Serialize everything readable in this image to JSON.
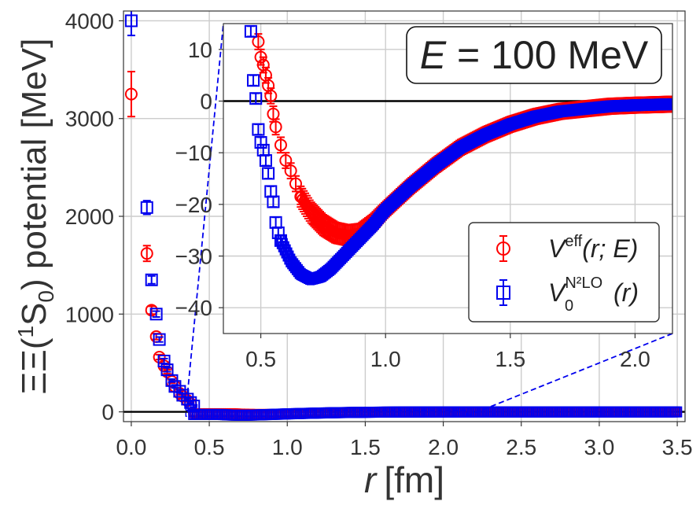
{
  "chart_data": {
    "type": "scatter",
    "main": {
      "xlabel_var": "r",
      "xlabel_unit": "[fm]",
      "ylabel_pre": "ΞΞ(",
      "ylabel_sup": "1",
      "ylabel_s": "S",
      "ylabel_sub": "0",
      "ylabel_post": ") potential [MeV]",
      "xlim": [
        -0.05,
        3.55
      ],
      "ylim": [
        -100,
        4100
      ],
      "xticks": [
        0.0,
        0.5,
        1.0,
        1.5,
        2.0,
        2.5,
        3.0,
        3.5
      ],
      "xtick_labels": [
        "0.0",
        "0.5",
        "1.0",
        "1.5",
        "2.0",
        "2.5",
        "3.0",
        "3.5"
      ],
      "yticks": [
        0,
        1000,
        2000,
        3000,
        4000
      ],
      "ytick_labels": [
        "0",
        "1000",
        "2000",
        "3000",
        "4000"
      ],
      "grid": true
    },
    "inset": {
      "xlim": [
        0.35,
        2.15
      ],
      "ylim": [
        -45,
        15
      ],
      "xticks": [
        0.5,
        1.0,
        1.5,
        2.0
      ],
      "xtick_labels": [
        "0.5",
        "1.0",
        "1.5",
        "2.0"
      ],
      "yticks": [
        -40,
        -30,
        -20,
        -10,
        0,
        10
      ],
      "ytick_labels": [
        "−40",
        "−30",
        "−20",
        "−10",
        "0",
        "10"
      ],
      "grid": true
    },
    "annotation": {
      "var": "E",
      "text": " = 100 MeV"
    },
    "legend": {
      "placement": "lower-right of inset",
      "entries": [
        {
          "var": "V",
          "sup": "eff",
          "args": "(r; E)",
          "color": "#ff0000",
          "marker": "circle"
        },
        {
          "var": "V",
          "sub": "0",
          "sup": "N²LO",
          "args": "(r)",
          "color": "#0000ee",
          "marker": "square"
        }
      ]
    },
    "series": [
      {
        "name": "V_eff(r;E)",
        "color": "#ff0000",
        "marker": "circle",
        "main_points": [
          {
            "x": 0.0,
            "y": 3250,
            "err": 230
          },
          {
            "x": 0.1,
            "y": 1620,
            "err": 80
          },
          {
            "x": 0.13,
            "y": 1040,
            "err": 40
          },
          {
            "x": 0.16,
            "y": 770,
            "err": 30
          },
          {
            "x": 0.18,
            "y": 560,
            "err": 25
          },
          {
            "x": 0.21,
            "y": 470,
            "err": 25
          },
          {
            "x": 0.23,
            "y": 410,
            "err": 20
          },
          {
            "x": 0.26,
            "y": 310,
            "err": 15
          },
          {
            "x": 0.28,
            "y": 260,
            "err": 15
          },
          {
            "x": 0.31,
            "y": 190,
            "err": 15
          },
          {
            "x": 0.33,
            "y": 160,
            "err": 15
          },
          {
            "x": 0.36,
            "y": 115,
            "err": 10
          },
          {
            "x": 0.38,
            "y": 85,
            "err": 10
          }
        ],
        "inset_points": [
          {
            "x": 0.49,
            "y": 11.5,
            "err": 1.5
          },
          {
            "x": 0.5,
            "y": 8.5,
            "err": 1.5
          },
          {
            "x": 0.51,
            "y": 7.0,
            "err": 1.5
          },
          {
            "x": 0.52,
            "y": 5.0,
            "err": 1.5
          },
          {
            "x": 0.53,
            "y": 3.0,
            "err": 1.5
          },
          {
            "x": 0.54,
            "y": 1.0,
            "err": 1.5
          },
          {
            "x": 0.55,
            "y": -2.5,
            "err": 1.5
          },
          {
            "x": 0.56,
            "y": -5.0,
            "err": 1.5
          },
          {
            "x": 0.58,
            "y": -8.5,
            "err": 1.5
          },
          {
            "x": 0.6,
            "y": -11.5,
            "err": 1.5
          },
          {
            "x": 0.62,
            "y": -13.5,
            "err": 1.5
          },
          {
            "x": 0.64,
            "y": -16.0,
            "err": 1.5
          },
          {
            "x": 0.66,
            "y": -18.5,
            "err": 1.5
          }
        ],
        "inset_curve": {
          "x": [
            0.66,
            0.7,
            0.75,
            0.8,
            0.85,
            0.9,
            0.95,
            1.0,
            1.1,
            1.2,
            1.3,
            1.4,
            1.5,
            1.6,
            1.7,
            1.8,
            1.9,
            2.0,
            2.15
          ],
          "y": [
            -18.5,
            -21.5,
            -24.0,
            -25.5,
            -26.0,
            -25.5,
            -23.5,
            -21.0,
            -16.5,
            -12.5,
            -9.0,
            -6.5,
            -4.5,
            -3.0,
            -2.0,
            -1.5,
            -1.0,
            -0.8,
            -0.6
          ],
          "err": [
            2.0,
            2.0,
            2.0,
            2.0,
            2.0,
            1.8,
            1.6,
            1.5,
            1.5,
            1.5,
            1.5,
            1.5,
            1.5,
            1.5,
            1.5,
            1.5,
            1.5,
            1.5,
            1.5
          ]
        }
      },
      {
        "name": "V0_N2LO(r)",
        "color": "#0000ee",
        "marker": "square",
        "main_points": [
          {
            "x": 0.0,
            "y": 4000,
            "err": 150
          },
          {
            "x": 0.1,
            "y": 2090,
            "err": 70
          },
          {
            "x": 0.13,
            "y": 1350,
            "err": 40
          },
          {
            "x": 0.16,
            "y": 1000,
            "err": 30
          },
          {
            "x": 0.18,
            "y": 740,
            "err": 25
          },
          {
            "x": 0.21,
            "y": 520,
            "err": 25
          },
          {
            "x": 0.23,
            "y": 430,
            "err": 20
          },
          {
            "x": 0.26,
            "y": 320,
            "err": 15
          },
          {
            "x": 0.28,
            "y": 260,
            "err": 15
          },
          {
            "x": 0.31,
            "y": 210,
            "err": 15
          },
          {
            "x": 0.33,
            "y": 170,
            "err": 15
          },
          {
            "x": 0.36,
            "y": 130,
            "err": 10
          },
          {
            "x": 0.38,
            "y": 95,
            "err": 10
          },
          {
            "x": 0.4,
            "y": 60,
            "err": 10
          }
        ],
        "inset_points": [
          {
            "x": 0.46,
            "y": 13.5,
            "err": 1.0
          },
          {
            "x": 0.47,
            "y": 4.0,
            "err": 1.0
          },
          {
            "x": 0.48,
            "y": 0.5,
            "err": 1.0
          },
          {
            "x": 0.49,
            "y": -5.5,
            "err": 1.0
          },
          {
            "x": 0.5,
            "y": -8.0,
            "err": 1.0
          },
          {
            "x": 0.51,
            "y": -9.5,
            "err": 1.0
          },
          {
            "x": 0.52,
            "y": -11.5,
            "err": 1.0
          },
          {
            "x": 0.53,
            "y": -14.0,
            "err": 1.0
          },
          {
            "x": 0.54,
            "y": -17.5,
            "err": 1.0
          },
          {
            "x": 0.55,
            "y": -19.5,
            "err": 1.0
          },
          {
            "x": 0.56,
            "y": -23.5,
            "err": 1.0
          },
          {
            "x": 0.57,
            "y": -25.5,
            "err": 1.0
          },
          {
            "x": 0.58,
            "y": -27.0,
            "err": 1.0
          }
        ],
        "inset_curve": {
          "x": [
            0.58,
            0.62,
            0.66,
            0.7,
            0.74,
            0.78,
            0.82,
            0.88,
            0.95,
            1.0,
            1.1,
            1.2,
            1.3,
            1.4,
            1.5,
            1.6,
            1.7,
            1.8,
            1.9,
            2.0,
            2.15
          ],
          "y": [
            -27.0,
            -31.0,
            -33.5,
            -34.5,
            -34.0,
            -32.5,
            -30.5,
            -27.5,
            -24.0,
            -21.0,
            -16.5,
            -12.5,
            -9.0,
            -6.5,
            -4.5,
            -3.0,
            -2.0,
            -1.5,
            -1.0,
            -0.8,
            -0.6
          ],
          "err": [
            1.0,
            1.0,
            1.0,
            1.0,
            1.0,
            1.0,
            1.0,
            1.0,
            1.0,
            1.0,
            1.0,
            1.0,
            1.0,
            1.0,
            1.0,
            1.0,
            1.0,
            1.0,
            1.0,
            1.0,
            1.0
          ]
        }
      }
    ]
  }
}
